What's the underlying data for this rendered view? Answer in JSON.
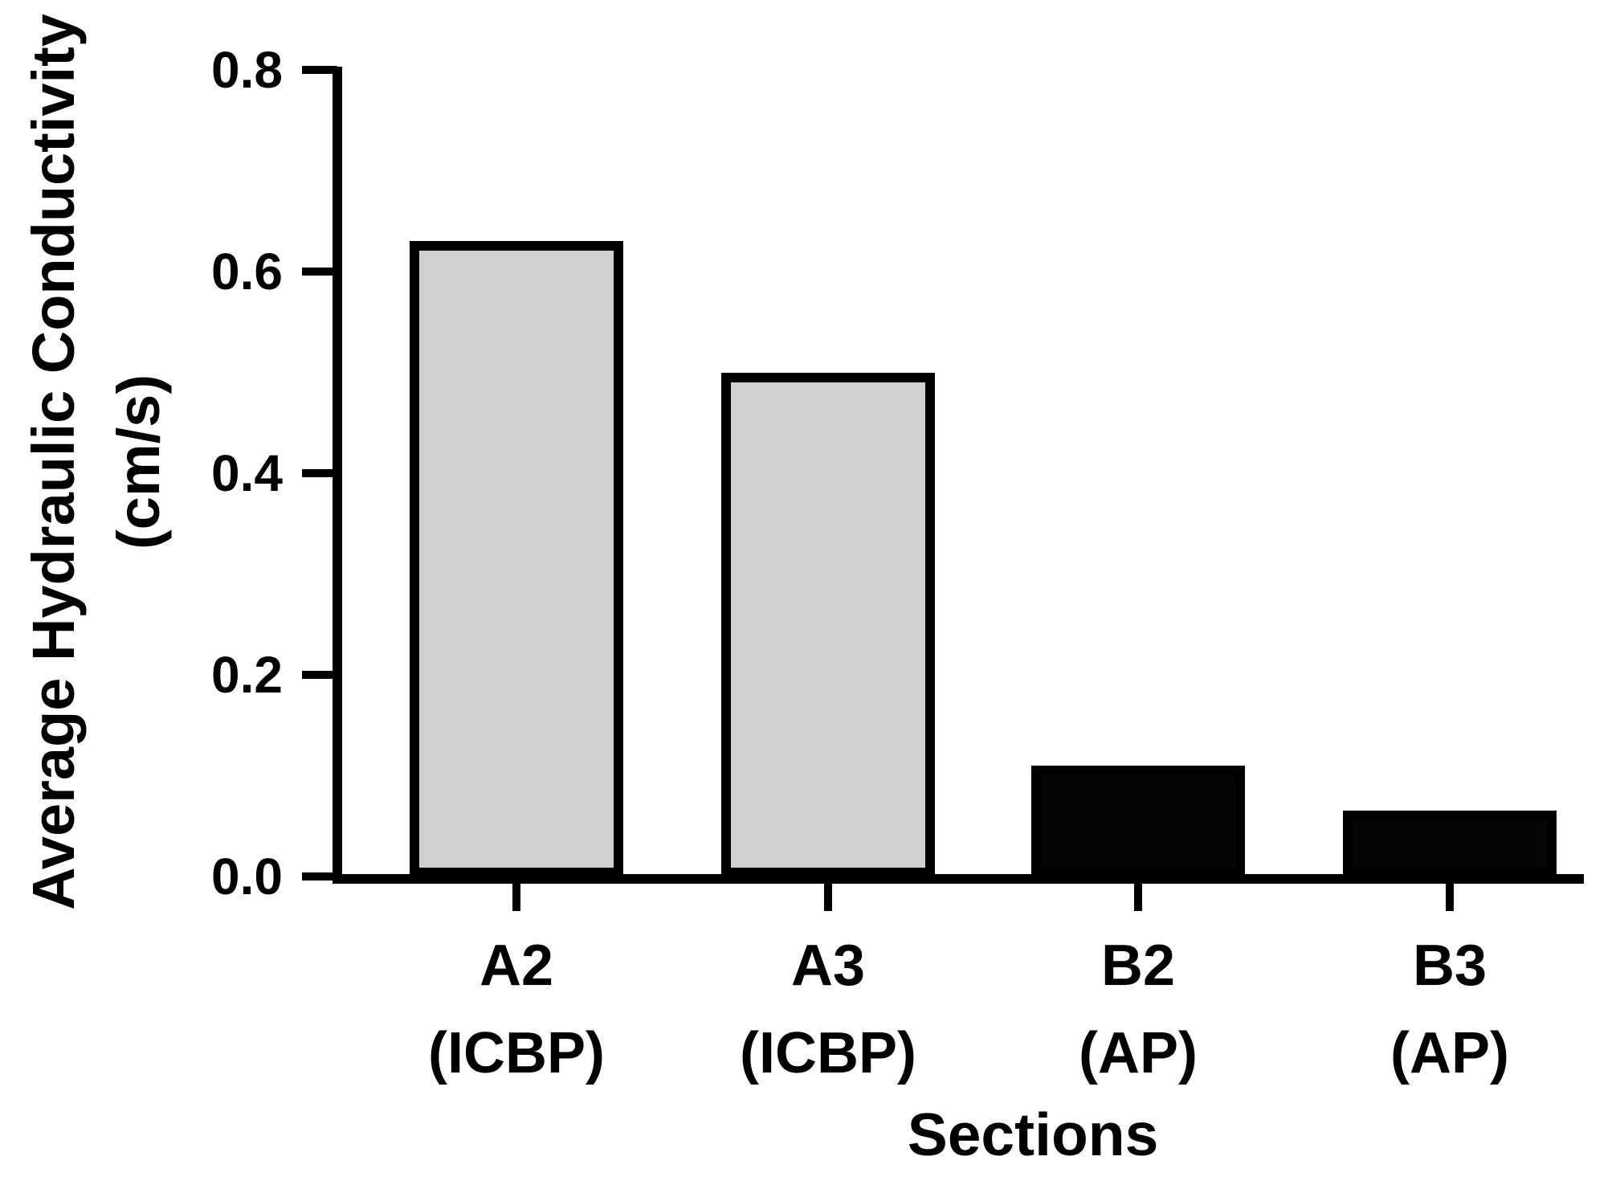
{
  "chart_data": {
    "type": "bar",
    "title": "",
    "xlabel": "Sections",
    "ylabel_line1": "Average Hydraulic Conductivity",
    "ylabel_line2": "(cm/s)",
    "categories": [
      "A2",
      "A3",
      "B2",
      "B3"
    ],
    "category_sublabels": [
      "(ICBP)",
      "(ICBP)",
      "(AP)",
      "(AP)"
    ],
    "values": [
      0.63,
      0.5,
      0.11,
      0.065
    ],
    "bar_fill_colors": [
      "#d1d1cf",
      "#d1d1cf",
      "#050505",
      "#050505"
    ],
    "bar_border_color": "#000000",
    "yticks": [
      0.8,
      0.6,
      0.4,
      0.2,
      0.0
    ],
    "ytick_labels": [
      "0.8",
      "0.6",
      "0.4",
      "0.2",
      "0.0"
    ],
    "ylim": [
      0,
      0.8
    ],
    "grid": false,
    "legend": false,
    "axis_color": "#000000",
    "background_color": "#ffffff"
  }
}
